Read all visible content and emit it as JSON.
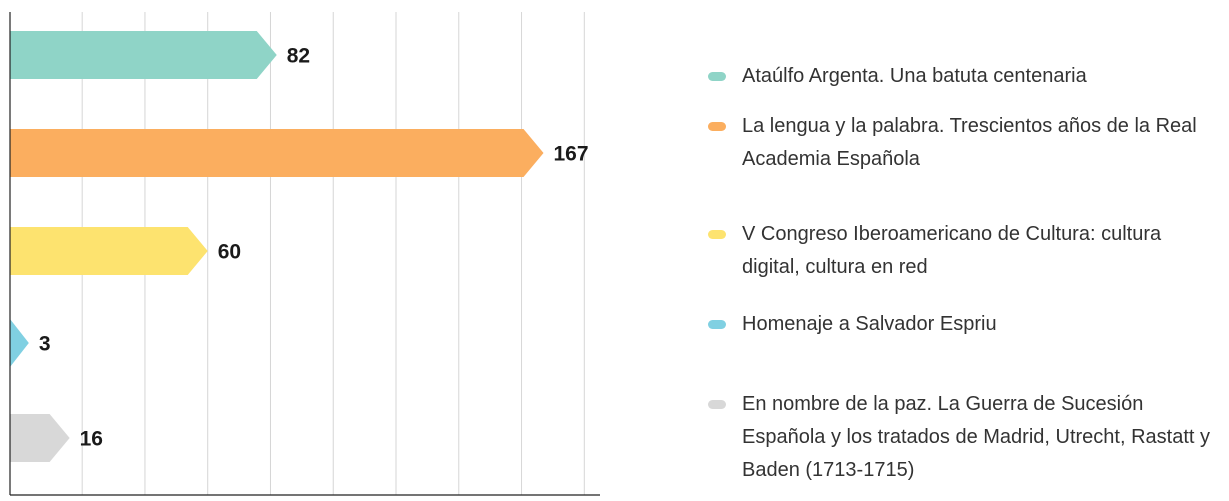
{
  "chart_data": {
    "type": "bar",
    "orientation": "horizontal",
    "categories": [
      "Ataúlfo Argenta. Una batuta centenaria",
      "La lengua y la palabra. Trescientos años de la Real Academia Española",
      "V Congreso Iberoamericano de Cultura: cultura digital, cultura en red",
      "Homenaje a Salvador Espriu",
      "En nombre de la paz. La Guerra de Sucesión Española y los tratados de Madrid, Utrecht, Rastatt y Baden (1713-1715)"
    ],
    "values": [
      82,
      167,
      60,
      3,
      16
    ],
    "colors": [
      "#8fd4c7",
      "#fbae5f",
      "#fde36f",
      "#80d0e2",
      "#d8d8d8"
    ],
    "xlim": [
      -3,
      185
    ],
    "xticks": [
      20,
      40,
      60,
      80,
      100,
      120,
      140,
      160,
      180
    ],
    "grid": true
  }
}
